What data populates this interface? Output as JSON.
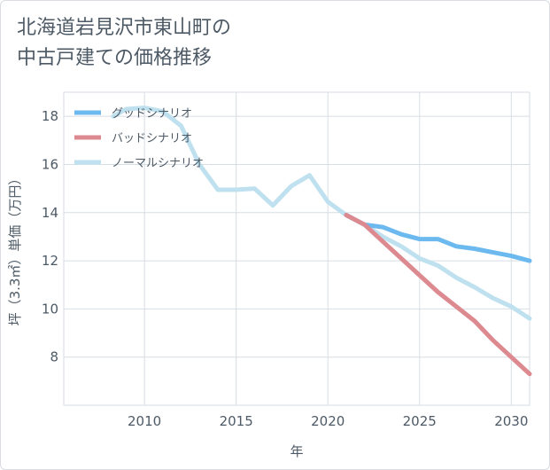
{
  "title_lines": [
    "北海道岩見沢市東山町の",
    "中古戸建ての価格推移"
  ],
  "chart_data": {
    "type": "line",
    "title": "北海道岩見沢市東山町の中古戸建ての価格推移",
    "xlabel": "年",
    "ylabel": "坪（3.3㎡）単価（万円）",
    "xlim": [
      2005.6,
      2031
    ],
    "ylim": [
      6,
      19
    ],
    "x_ticks": [
      2010,
      2015,
      2020,
      2025,
      2030
    ],
    "y_ticks": [
      8,
      10,
      12,
      14,
      16,
      18
    ],
    "grid": true,
    "legend_position": "top-left",
    "series": [
      {
        "name": "グッドシナリオ",
        "color": "#6bb9ef",
        "points": [
          [
            2021,
            13.9
          ],
          [
            2022,
            13.5
          ],
          [
            2023,
            13.4
          ],
          [
            2024,
            13.1
          ],
          [
            2025,
            12.9
          ],
          [
            2026,
            12.9
          ],
          [
            2027,
            12.6
          ],
          [
            2028,
            12.5
          ],
          [
            2029,
            12.35
          ],
          [
            2030,
            12.2
          ],
          [
            2031,
            12.0
          ]
        ]
      },
      {
        "name": "バッドシナリオ",
        "color": "#dc8a90",
        "points": [
          [
            2021,
            13.9
          ],
          [
            2022,
            13.5
          ],
          [
            2023,
            12.8
          ],
          [
            2024,
            12.1
          ],
          [
            2025,
            11.4
          ],
          [
            2026,
            10.7
          ],
          [
            2027,
            10.1
          ],
          [
            2028,
            9.5
          ],
          [
            2029,
            8.7
          ],
          [
            2030,
            8.0
          ],
          [
            2031,
            7.3
          ]
        ]
      },
      {
        "name": "ノーマルシナリオ",
        "color": "#bfe1ef",
        "points": [
          [
            2008.3,
            18.0
          ],
          [
            2009,
            18.3
          ],
          [
            2010,
            18.35
          ],
          [
            2011,
            18.2
          ],
          [
            2012,
            17.6
          ],
          [
            2013,
            16.0
          ],
          [
            2014,
            14.95
          ],
          [
            2015,
            14.95
          ],
          [
            2016,
            15.0
          ],
          [
            2017,
            14.3
          ],
          [
            2018,
            15.1
          ],
          [
            2019,
            15.55
          ],
          [
            2020,
            14.45
          ],
          [
            2021,
            13.9
          ],
          [
            2022,
            13.5
          ],
          [
            2023,
            13.0
          ],
          [
            2024,
            12.6
          ],
          [
            2025,
            12.1
          ],
          [
            2026,
            11.8
          ],
          [
            2027,
            11.3
          ],
          [
            2028,
            10.9
          ],
          [
            2029,
            10.45
          ],
          [
            2030,
            10.1
          ],
          [
            2031,
            9.6
          ]
        ]
      }
    ]
  }
}
